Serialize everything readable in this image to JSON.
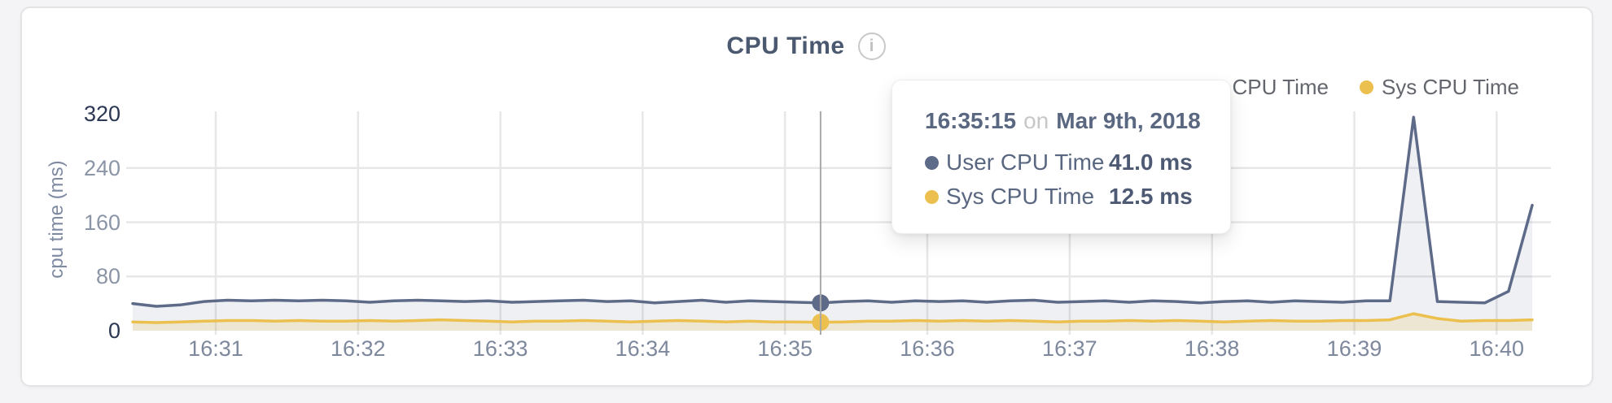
{
  "header": {
    "title": "CPU Time",
    "info_icon": "i"
  },
  "legend": {
    "items": [
      {
        "label": "User CPU Time",
        "color": "#5d6b89"
      },
      {
        "label": "Sys CPU Time",
        "color": "#ecc04f"
      }
    ]
  },
  "tooltip": {
    "time": "16:35:15",
    "connector": "on",
    "date": "Mar 9th, 2018",
    "rows": [
      {
        "label": "User CPU Time",
        "value": "41.0 ms",
        "color": "#5d6b89"
      },
      {
        "label": "Sys CPU Time",
        "value": "12.5 ms",
        "color": "#ecc04f"
      }
    ]
  },
  "colors": {
    "grid": "#e7e7e9",
    "crosshair": "#a9a9a9",
    "tick_light": "#8b95a7",
    "tick_dark": "#2b3753",
    "x_label": "#7d889d",
    "axis_title": "#7e8aa2",
    "title": "#4a5870",
    "legend_text": "#63666d"
  },
  "chart_data": {
    "type": "area",
    "title": "CPU Time",
    "ylabel": "cpu time (ms)",
    "ylim": [
      0,
      320
    ],
    "grid": true,
    "legend_position": "top-right",
    "hover_index": 29,
    "x": [
      "16:30:25",
      "16:30:35",
      "16:30:45",
      "16:30:55",
      "16:31:05",
      "16:31:15",
      "16:31:25",
      "16:31:35",
      "16:31:45",
      "16:31:55",
      "16:32:05",
      "16:32:15",
      "16:32:25",
      "16:32:35",
      "16:32:45",
      "16:32:55",
      "16:33:05",
      "16:33:15",
      "16:33:25",
      "16:33:35",
      "16:33:45",
      "16:33:55",
      "16:34:05",
      "16:34:15",
      "16:34:25",
      "16:34:35",
      "16:34:45",
      "16:34:55",
      "16:35:05",
      "16:35:15",
      "16:35:25",
      "16:35:35",
      "16:35:45",
      "16:35:55",
      "16:36:05",
      "16:36:15",
      "16:36:25",
      "16:36:35",
      "16:36:45",
      "16:36:55",
      "16:37:05",
      "16:37:15",
      "16:37:25",
      "16:37:35",
      "16:37:45",
      "16:37:55",
      "16:38:05",
      "16:38:15",
      "16:38:25",
      "16:38:35",
      "16:38:45",
      "16:38:55",
      "16:39:05",
      "16:39:15",
      "16:39:25",
      "16:39:35",
      "16:39:45",
      "16:39:55",
      "16:40:05",
      "16:40:15"
    ],
    "series": [
      {
        "name": "User CPU Time",
        "color": "#5d6b89",
        "fill": "rgba(93,107,137,0.10)",
        "values": [
          40,
          36,
          38,
          43,
          45,
          44,
          45,
          44,
          45,
          44,
          42,
          44,
          45,
          44,
          43,
          44,
          42,
          43,
          44,
          45,
          43,
          44,
          41,
          43,
          45,
          42,
          44,
          43,
          42,
          41,
          43,
          44,
          42,
          44,
          43,
          44,
          42,
          44,
          45,
          42,
          43,
          44,
          42,
          44,
          43,
          41,
          43,
          44,
          42,
          44,
          43,
          42,
          44,
          44,
          315,
          43,
          42,
          41,
          58,
          185
        ]
      },
      {
        "name": "Sys CPU Time",
        "color": "#ecc04f",
        "fill": "rgba(236,192,79,0.20)",
        "values": [
          13,
          12,
          13,
          14,
          15,
          15,
          14,
          15,
          14,
          14,
          15,
          14,
          15,
          16,
          15,
          14,
          13,
          14,
          14,
          15,
          14,
          13,
          14,
          15,
          14,
          13,
          14,
          13,
          13,
          12.5,
          13,
          14,
          14,
          15,
          14,
          15,
          14,
          15,
          14,
          13,
          14,
          14,
          15,
          14,
          15,
          14,
          13,
          14,
          15,
          14,
          14,
          15,
          15,
          16,
          25,
          18,
          14,
          15,
          15,
          16
        ]
      }
    ],
    "y_ticks": [
      {
        "label": "320",
        "value": 320,
        "emphasis": true
      },
      {
        "label": "240",
        "value": 240,
        "emphasis": false
      },
      {
        "label": "160",
        "value": 160,
        "emphasis": false
      },
      {
        "label": "80",
        "value": 80,
        "emphasis": false
      },
      {
        "label": "0",
        "value": 0,
        "emphasis": true
      }
    ],
    "x_ticks": [
      {
        "label": "16:31",
        "index": 3.5
      },
      {
        "label": "16:32",
        "index": 9.5
      },
      {
        "label": "16:33",
        "index": 15.5
      },
      {
        "label": "16:34",
        "index": 21.5
      },
      {
        "label": "16:35",
        "index": 27.5
      },
      {
        "label": "16:36",
        "index": 33.5
      },
      {
        "label": "16:37",
        "index": 39.5
      },
      {
        "label": "16:38",
        "index": 45.5
      },
      {
        "label": "16:39",
        "index": 51.5
      },
      {
        "label": "16:40",
        "index": 57.5
      }
    ]
  }
}
